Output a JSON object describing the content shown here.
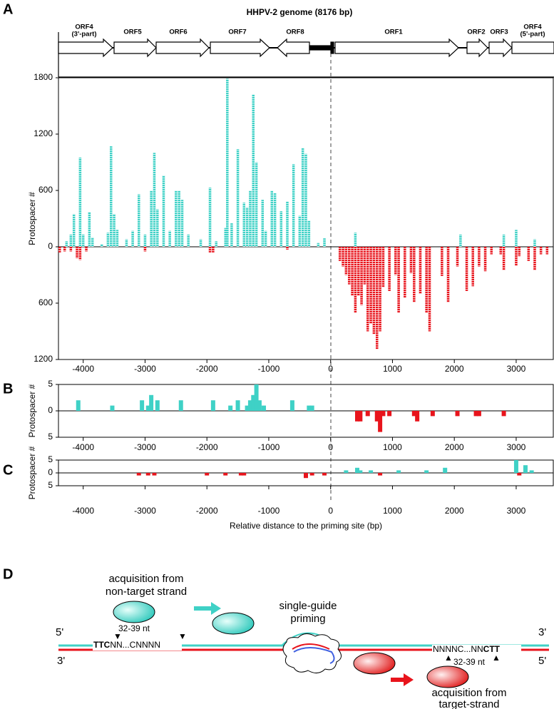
{
  "panel_labels": [
    "A",
    "B",
    "C",
    "D"
  ],
  "genome_map": {
    "orfs": [
      "ORF4",
      "(3'-part)",
      "ORF5",
      "ORF6",
      "ORF7",
      "ORF8",
      "ORF1",
      "ORF2",
      "ORF3",
      "ORF4",
      "(5'-part)"
    ]
  },
  "chart_data": [
    {
      "type": "bar",
      "title": "HHPV-2 genome (8176 bp)",
      "y_label": "Protospacer #",
      "xlim": [
        -4400,
        3600
      ],
      "ylim": [
        -1200,
        1800
      ],
      "xticks": [
        -4000,
        -3000,
        -2000,
        -1000,
        0,
        1000,
        2000,
        3000
      ],
      "yticks": [
        {
          "value": -1200,
          "label": "1200"
        },
        {
          "value": -600,
          "label": "600"
        },
        0,
        600,
        1200,
        1800
      ],
      "series": [
        {
          "color": "#3fd1c6",
          "x": [
            -4270,
            -4200,
            -4150,
            -4050,
            -4000,
            -3900,
            -3850,
            -3700,
            -3600,
            -3550,
            -3500,
            -3450,
            -3300,
            -3200,
            -3100,
            -3000,
            -2900,
            -2850,
            -2800,
            -2700,
            -2600,
            -2500,
            -2450,
            -2400,
            -2300,
            -2100,
            -1950,
            -1850,
            -1700,
            -1670,
            -1600,
            -1500,
            -1400,
            -1350,
            -1300,
            -1250,
            -1200,
            -1100,
            -1050,
            -950,
            -900,
            -800,
            -700,
            -600,
            -500,
            -450,
            -400,
            -350,
            -200,
            -100,
            400,
            2100,
            2800,
            3000,
            3300
          ],
          "values": [
            60,
            130,
            350,
            950,
            130,
            370,
            100,
            30,
            150,
            1070,
            350,
            180,
            80,
            170,
            560,
            130,
            600,
            1000,
            400,
            760,
            170,
            600,
            600,
            500,
            130,
            80,
            630,
            60,
            200,
            1790,
            250,
            1040,
            470,
            420,
            600,
            1620,
            900,
            500,
            170,
            600,
            570,
            380,
            480,
            880,
            330,
            1050,
            990,
            280,
            40,
            90,
            150,
            130,
            130,
            180,
            80
          ]
        },
        {
          "color": "#e8141c",
          "x": [
            -4380,
            -4300,
            -4200,
            -4100,
            -4050,
            -3950,
            -3000,
            -1950,
            -1900,
            -700,
            150,
            200,
            250,
            300,
            350,
            400,
            450,
            500,
            550,
            600,
            650,
            700,
            750,
            800,
            850,
            950,
            1050,
            1100,
            1200,
            1300,
            1350,
            1450,
            1550,
            1600,
            1800,
            1900,
            2050,
            2200,
            2300,
            2400,
            2500,
            2600,
            2750,
            2800,
            3000,
            3050,
            3200,
            3300,
            3400,
            3500
          ],
          "values": [
            -60,
            -50,
            -50,
            -120,
            -140,
            -50,
            -50,
            -60,
            -60,
            -30,
            -150,
            -210,
            -300,
            -400,
            -520,
            -700,
            -520,
            -620,
            -400,
            -900,
            -820,
            -930,
            -1090,
            -900,
            -430,
            -470,
            -300,
            -700,
            -540,
            -280,
            -590,
            -500,
            -700,
            -900,
            -310,
            -590,
            -210,
            -470,
            -420,
            -210,
            -260,
            -80,
            -80,
            -250,
            -200,
            -100,
            -150,
            -250,
            -80,
            -80
          ]
        }
      ]
    },
    {
      "type": "bar",
      "y_label": "Protospacer #",
      "xlim": [
        -4400,
        3600
      ],
      "ylim": [
        -5,
        5
      ],
      "xticks": [
        -4000,
        -3000,
        -2000,
        -1000,
        0,
        1000,
        2000,
        3000
      ],
      "yticks": [
        {
          "value": -5,
          "label": "5"
        },
        0,
        5
      ],
      "series": [
        {
          "color": "#3fd1c6",
          "x": [
            -4080,
            -3530,
            -3050,
            -2950,
            -2900,
            -2800,
            -2420,
            -1900,
            -1620,
            -1500,
            -1350,
            -1300,
            -1250,
            -1200,
            -1150,
            -1080,
            -620,
            -350,
            -300
          ],
          "values": [
            2,
            1,
            2,
            1,
            3,
            2,
            2,
            2,
            1,
            2,
            1,
            2,
            3,
            5,
            2,
            1,
            2,
            1,
            1
          ]
        },
        {
          "color": "#e8141c",
          "x": [
            430,
            480,
            600,
            750,
            800,
            850,
            950,
            1350,
            1400,
            1650,
            2050,
            2350,
            2400,
            2800
          ],
          "values": [
            -2,
            -2,
            -1,
            -2,
            -4,
            -1,
            -1,
            -1,
            -2,
            -1,
            -1,
            -1,
            -1,
            -1
          ]
        }
      ]
    },
    {
      "type": "bar",
      "y_label": "Protospacer #",
      "x_label": "Relative distance to the priming site (bp)",
      "xlim": [
        -4400,
        3600
      ],
      "ylim": [
        -5,
        5
      ],
      "xticks": [
        -4000,
        -3000,
        -2000,
        -1000,
        0,
        1000,
        2000,
        3000
      ],
      "yticks": [
        {
          "value": -5,
          "label": "5"
        },
        0,
        5
      ],
      "series": [
        {
          "color": "#3fd1c6",
          "x": [
            250,
            430,
            480,
            650,
            1100,
            1550,
            1850,
            3000,
            3150,
            3250
          ],
          "values": [
            1,
            2,
            1,
            1,
            1,
            1,
            2,
            5,
            3,
            1
          ]
        },
        {
          "color": "#e8141c",
          "x": [
            -3100,
            -2950,
            -2850,
            -2000,
            -1700,
            -1450,
            -1400,
            -400,
            -300,
            -100,
            800,
            3050
          ],
          "values": [
            -1,
            -1,
            -1,
            -1,
            -1,
            -1,
            -1,
            -2,
            -1,
            -1,
            -1,
            -1
          ]
        }
      ]
    }
  ],
  "diagram": {
    "left_label": [
      "acquisition from",
      "non-target strand"
    ],
    "left_length": "32-39 nt",
    "top_sequence": [
      "TTC",
      "NN...CNNNN"
    ],
    "priming": [
      "single-guide",
      "priming"
    ],
    "top_ends": [
      "5'",
      "3'"
    ],
    "bottom_ends": [
      "3'",
      "5'"
    ],
    "bottom_sequence": [
      "NNNNC...NN",
      "CTT"
    ],
    "right_length": "32-39 nt",
    "right_label": [
      "acquisition from",
      "target-strand"
    ]
  }
}
